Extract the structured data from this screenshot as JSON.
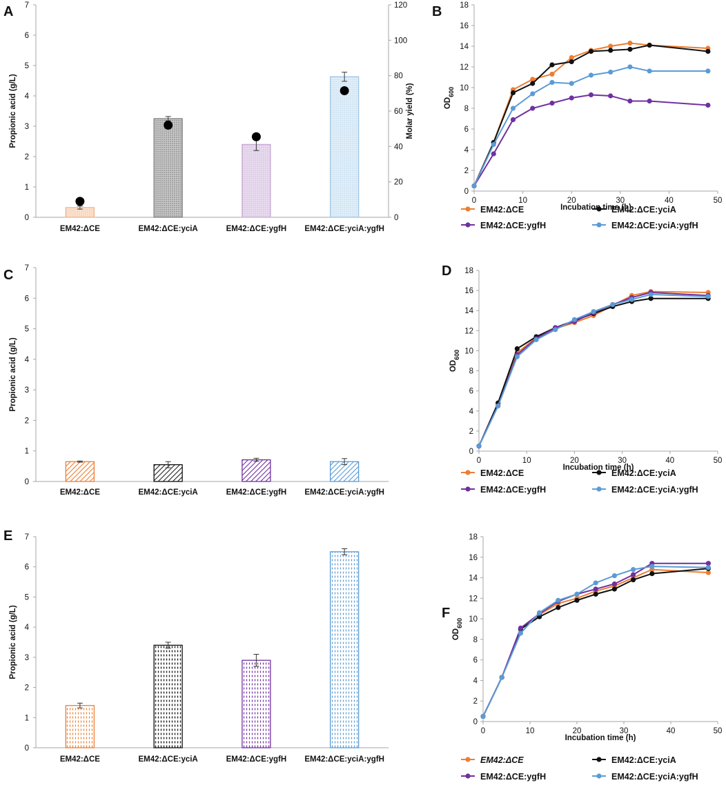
{
  "colors": {
    "orange": "#ED7D31",
    "black": "#111111",
    "purple": "#7030A0",
    "blue": "#5B9BD5",
    "axis": "#A6A6A6",
    "tan": "#F4B183",
    "gray": "#7F7F7F",
    "lilac": "#C9A9D6",
    "teal": "#9DC3E6"
  },
  "chart_data": [
    {
      "panel": "A",
      "type": "bar",
      "ylabel": "Propionic acid (g/L)",
      "y2label": "Molar yield (%)",
      "ylim": [
        0,
        7
      ],
      "y2lim": [
        0,
        120
      ],
      "yticks": [
        "0",
        "1",
        "2",
        "3",
        "4",
        "5",
        "6",
        "7"
      ],
      "y2ticks": [
        "0",
        "20",
        "40",
        "60",
        "80",
        "100",
        "120"
      ],
      "categories": [
        "EM42:ΔCE",
        "EM42:ΔCE:yciA",
        "EM42:ΔCE:ygfH",
        "EM42:ΔCE:yciA:ygfH"
      ],
      "values": [
        0.32,
        3.25,
        2.4,
        4.63
      ],
      "errors": [
        0.05,
        0.07,
        0.2,
        0.15
      ],
      "secondary_values": [
        9,
        52,
        45.5,
        71.5
      ]
    },
    {
      "panel": "B",
      "type": "line",
      "xlabel": "Incubation time (h)",
      "ylabel_main": "OD",
      "ylabel_sub": "600",
      "xlim": [
        0,
        50
      ],
      "ylim": [
        0,
        18
      ],
      "xticks": [
        "0",
        "10",
        "20",
        "30",
        "40",
        "50"
      ],
      "yticks": [
        "0",
        "2",
        "4",
        "6",
        "8",
        "10",
        "12",
        "14",
        "16",
        "18"
      ],
      "x": [
        0,
        4,
        8,
        12,
        16,
        20,
        24,
        28,
        32,
        36,
        48
      ],
      "series": [
        {
          "name": "EM42:ΔCE",
          "values": [
            0.5,
            4.7,
            9.8,
            10.8,
            11.3,
            12.9,
            13.6,
            14.0,
            14.3,
            14.1,
            13.8
          ]
        },
        {
          "name": "EM42:ΔCE:yciA",
          "values": [
            0.5,
            4.7,
            9.5,
            10.4,
            12.2,
            12.5,
            13.5,
            13.6,
            13.7,
            14.1,
            13.5
          ]
        },
        {
          "name": "EM42:ΔCE:ygfH",
          "values": [
            0.5,
            3.6,
            6.9,
            8.0,
            8.5,
            9.0,
            9.3,
            9.2,
            8.7,
            8.7,
            8.3
          ]
        },
        {
          "name": "EM42:ΔCE:yciA:ygfH",
          "values": [
            0.5,
            4.5,
            8.0,
            9.4,
            10.5,
            10.4,
            11.2,
            11.5,
            12.0,
            11.6,
            11.6
          ]
        }
      ]
    },
    {
      "panel": "C",
      "type": "bar",
      "ylabel": "Propionic acid (g/L)",
      "ylim": [
        0,
        7
      ],
      "yticks": [
        "0",
        "1",
        "2",
        "3",
        "4",
        "5",
        "6",
        "7"
      ],
      "categories": [
        "EM42:ΔCE",
        "EM42:ΔCE:yciA",
        "EM42:ΔCE:ygfH",
        "EM42:ΔCE:yciA:ygfH"
      ],
      "values": [
        0.65,
        0.55,
        0.71,
        0.65
      ],
      "errors": [
        0.02,
        0.1,
        0.05,
        0.1
      ]
    },
    {
      "panel": "D",
      "type": "line",
      "xlabel": "Incubation time (h)",
      "ylabel_main": "OD",
      "ylabel_sub": "600",
      "xlim": [
        0,
        50
      ],
      "ylim": [
        0,
        18
      ],
      "xticks": [
        "0",
        "10",
        "20",
        "30",
        "40",
        "50"
      ],
      "yticks": [
        "0",
        "2",
        "4",
        "6",
        "8",
        "10",
        "12",
        "14",
        "16",
        "18"
      ],
      "x": [
        0,
        4,
        8,
        12,
        16,
        20,
        24,
        28,
        32,
        36,
        48
      ],
      "series": [
        {
          "name": "EM42:ΔCE",
          "values": [
            0.5,
            4.6,
            9.8,
            11.3,
            12.2,
            12.8,
            13.5,
            14.5,
            15.5,
            15.9,
            15.8
          ]
        },
        {
          "name": "EM42:ΔCE:yciA",
          "values": [
            0.5,
            4.8,
            10.2,
            11.4,
            12.3,
            13.0,
            13.7,
            14.4,
            14.9,
            15.2,
            15.2
          ]
        },
        {
          "name": "EM42:ΔCE:ygfH",
          "values": [
            0.5,
            4.5,
            9.6,
            11.2,
            12.3,
            12.9,
            13.8,
            14.6,
            15.3,
            15.8,
            15.5
          ]
        },
        {
          "name": "EM42:ΔCE:yciA:ygfH",
          "values": [
            0.5,
            4.5,
            9.4,
            11.1,
            12.1,
            13.1,
            13.9,
            14.6,
            15.1,
            15.6,
            15.4
          ]
        }
      ]
    },
    {
      "panel": "E",
      "type": "bar",
      "ylabel": "Propionic acid (g/L)",
      "ylim": [
        0,
        7
      ],
      "yticks": [
        "0",
        "1",
        "2",
        "3",
        "4",
        "5",
        "6",
        "7"
      ],
      "categories": [
        "EM42:ΔCE",
        "EM42:ΔCE:yciA",
        "EM42:ΔCE:ygfH",
        "EM42:ΔCE:yciA:ygfH"
      ],
      "values": [
        1.4,
        3.4,
        2.9,
        6.5
      ],
      "errors": [
        0.08,
        0.1,
        0.2,
        0.1
      ]
    },
    {
      "panel": "F",
      "type": "line",
      "xlabel": "Incubation time (h)",
      "ylabel_main": "OD",
      "ylabel_sub": "600",
      "xlim": [
        0,
        50
      ],
      "ylim": [
        0,
        18
      ],
      "xticks": [
        "0",
        "10",
        "20",
        "30",
        "40",
        "50"
      ],
      "yticks": [
        "0",
        "2",
        "4",
        "6",
        "8",
        "10",
        "12",
        "14",
        "16",
        "18"
      ],
      "x": [
        0,
        4,
        8,
        12,
        16,
        20,
        24,
        28,
        32,
        36,
        48
      ],
      "series": [
        {
          "name": "EM42:ΔCE",
          "values": [
            0.5,
            4.3,
            9.0,
            10.4,
            11.5,
            12.0,
            12.7,
            13.2,
            14.0,
            14.8,
            14.5
          ]
        },
        {
          "name": "EM42:ΔCE:yciA",
          "values": [
            0.5,
            4.3,
            9.0,
            10.2,
            11.1,
            11.8,
            12.4,
            12.9,
            13.8,
            14.4,
            14.9
          ]
        },
        {
          "name": "EM42:ΔCE:ygfH",
          "values": [
            0.5,
            4.3,
            9.1,
            10.5,
            11.7,
            12.4,
            12.9,
            13.4,
            14.3,
            15.4,
            15.4
          ]
        },
        {
          "name": "EM42:ΔCE:yciA:ygfH",
          "values": [
            0.5,
            4.3,
            8.6,
            10.6,
            11.8,
            12.4,
            13.5,
            14.2,
            14.8,
            15.1,
            15.0
          ]
        }
      ]
    }
  ]
}
